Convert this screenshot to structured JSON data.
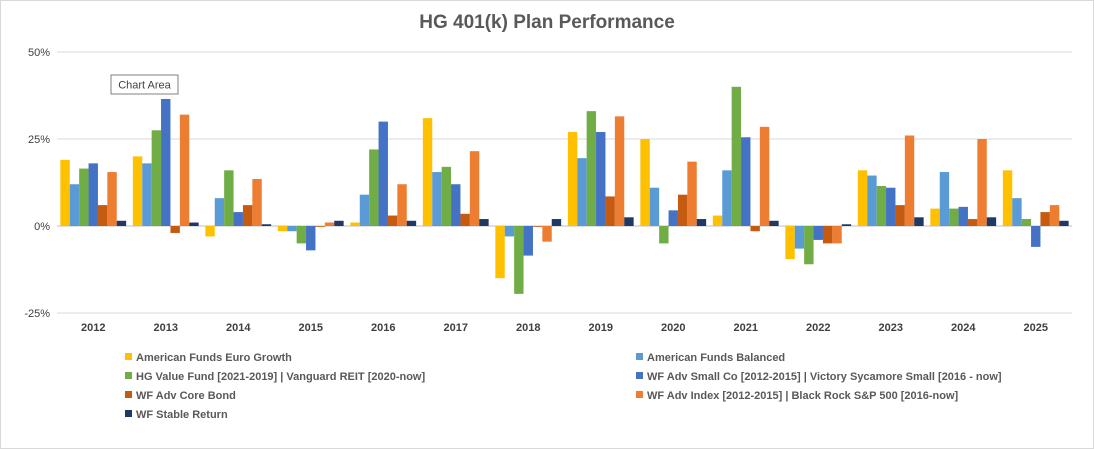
{
  "tooltip": "Chart Area",
  "chart_data": {
    "type": "bar",
    "title": "HG 401(k) Plan Performance",
    "xlabel": "",
    "ylabel": "",
    "ylim": [
      -25,
      50
    ],
    "y_ticks": [
      "50%",
      "25%",
      "0%",
      "-25%"
    ],
    "y_tick_values": [
      50,
      25,
      0,
      -25
    ],
    "grid": true,
    "legend_position": "bottom",
    "categories": [
      "2012",
      "2013",
      "2014",
      "2015",
      "2016",
      "2017",
      "2018",
      "2019",
      "2020",
      "2021",
      "2022",
      "2023",
      "2024",
      "2025"
    ],
    "series": [
      {
        "name": "American Funds Euro Growth",
        "color": "#FFC000",
        "values": [
          19,
          20,
          -3,
          -1.5,
          1,
          31,
          -15,
          27,
          25,
          3,
          -9.5,
          16,
          5,
          16
        ]
      },
      {
        "name": "American Funds Balanced",
        "color": "#5B9BD5",
        "values": [
          12,
          18,
          8,
          -1.5,
          9,
          15.5,
          -3,
          19.5,
          11,
          16,
          -6.5,
          14.5,
          15.5,
          8
        ]
      },
      {
        "name": "HG Value Fund [2021-2019] | Vanguard REIT [2020-now]",
        "color": "#70AD47",
        "values": [
          16.5,
          27.5,
          16,
          -5,
          22,
          17,
          -19.5,
          33,
          -5,
          40,
          -11,
          11.5,
          5,
          2
        ]
      },
      {
        "name": "WF Adv Small Co [2012-2015] | Victory Sycamore Small [2016 - now]",
        "color": "#4472C4",
        "values": [
          18,
          36.5,
          4,
          -7,
          30,
          12,
          -8.5,
          27,
          4.5,
          25.5,
          -4,
          11,
          5.5,
          -6
        ]
      },
      {
        "name": "WF Adv Core Bond",
        "color": "#C55A11",
        "values": [
          6,
          -2,
          6,
          0,
          3,
          3.5,
          0,
          8.5,
          9,
          -1.5,
          -5,
          6,
          2,
          4
        ]
      },
      {
        "name": "WF Adv Index [2012-2015] | Black Rock S&P 500 [2016-now]",
        "color": "#ED7D31",
        "values": [
          15.5,
          32,
          13.5,
          1,
          12,
          21.5,
          -4.5,
          31.5,
          18.5,
          28.5,
          -5,
          26,
          25,
          6
        ]
      },
      {
        "name": "WF Stable Return",
        "color": "#203864",
        "values": [
          1.5,
          1,
          0.5,
          1.5,
          1.5,
          2,
          2,
          2.5,
          2,
          1.5,
          0.5,
          2.5,
          2.5,
          1.5
        ]
      }
    ]
  }
}
